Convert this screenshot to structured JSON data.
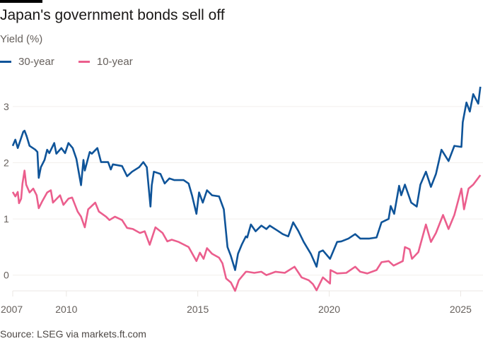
{
  "header": {
    "title": "Japan's government bonds sell off",
    "subtitle": "Yield (%)"
  },
  "footer": {
    "source": "Source: LSEG via markets.ft.com"
  },
  "chart_data": {
    "type": "line",
    "title": "Japan's government bonds sell off",
    "ylabel": "Yield (%)",
    "xlabel": "",
    "xlim": [
      2007.96,
      2025.85
    ],
    "ylim": [
      -0.28,
      3.5
    ],
    "grid": true,
    "legend_placement": "top-left",
    "x_ticks": [
      {
        "label": "2007",
        "value": 2007.96
      },
      {
        "label": "2010",
        "value": 2010
      },
      {
        "label": "2015",
        "value": 2015
      },
      {
        "label": "2020",
        "value": 2020
      },
      {
        "label": "2025",
        "value": 2025
      }
    ],
    "y_ticks": [
      0,
      1,
      2,
      3
    ],
    "series": [
      {
        "name": "30-year",
        "color": "#0f5499",
        "points": [
          [
            2007.96,
            2.3
          ],
          [
            2008.06,
            2.41
          ],
          [
            2008.15,
            2.26
          ],
          [
            2008.36,
            2.55
          ],
          [
            2008.41,
            2.57
          ],
          [
            2008.49,
            2.47
          ],
          [
            2008.6,
            2.3
          ],
          [
            2008.82,
            2.23
          ],
          [
            2008.9,
            2.19
          ],
          [
            2008.95,
            1.73
          ],
          [
            2009.03,
            1.92
          ],
          [
            2009.17,
            2.05
          ],
          [
            2009.27,
            2.23
          ],
          [
            2009.35,
            2.17
          ],
          [
            2009.54,
            2.35
          ],
          [
            2009.62,
            2.16
          ],
          [
            2009.81,
            2.26
          ],
          [
            2009.95,
            2.17
          ],
          [
            2010.08,
            2.35
          ],
          [
            2010.24,
            2.26
          ],
          [
            2010.38,
            2.07
          ],
          [
            2010.56,
            1.6
          ],
          [
            2010.65,
            2.05
          ],
          [
            2010.7,
            1.86
          ],
          [
            2010.89,
            2.19
          ],
          [
            2010.97,
            2.16
          ],
          [
            2011.18,
            2.26
          ],
          [
            2011.32,
            2.01
          ],
          [
            2011.59,
            2.01
          ],
          [
            2011.69,
            1.88
          ],
          [
            2011.77,
            1.97
          ],
          [
            2012.12,
            1.94
          ],
          [
            2012.31,
            1.76
          ],
          [
            2012.5,
            1.84
          ],
          [
            2012.77,
            1.92
          ],
          [
            2012.93,
            2.01
          ],
          [
            2013.06,
            1.92
          ],
          [
            2013.2,
            1.22
          ],
          [
            2013.25,
            1.6
          ],
          [
            2013.33,
            1.84
          ],
          [
            2013.58,
            1.8
          ],
          [
            2013.74,
            1.63
          ],
          [
            2013.92,
            1.72
          ],
          [
            2014.11,
            1.69
          ],
          [
            2014.46,
            1.69
          ],
          [
            2014.65,
            1.63
          ],
          [
            2014.78,
            1.42
          ],
          [
            2014.95,
            1.09
          ],
          [
            2015.05,
            1.47
          ],
          [
            2015.19,
            1.29
          ],
          [
            2015.35,
            1.51
          ],
          [
            2015.54,
            1.42
          ],
          [
            2015.81,
            1.4
          ],
          [
            2015.99,
            1.17
          ],
          [
            2016.13,
            0.5
          ],
          [
            2016.26,
            0.34
          ],
          [
            2016.42,
            0.09
          ],
          [
            2016.53,
            0.38
          ],
          [
            2016.67,
            0.54
          ],
          [
            2016.83,
            0.69
          ],
          [
            2016.88,
            0.67
          ],
          [
            2017.02,
            0.9
          ],
          [
            2017.2,
            0.78
          ],
          [
            2017.42,
            0.88
          ],
          [
            2017.61,
            0.82
          ],
          [
            2017.74,
            0.88
          ],
          [
            2018.04,
            0.79
          ],
          [
            2018.23,
            0.73
          ],
          [
            2018.44,
            0.69
          ],
          [
            2018.63,
            0.94
          ],
          [
            2018.82,
            0.79
          ],
          [
            2019.03,
            0.59
          ],
          [
            2019.3,
            0.38
          ],
          [
            2019.52,
            0.15
          ],
          [
            2019.62,
            0.41
          ],
          [
            2019.76,
            0.44
          ],
          [
            2020.03,
            0.29
          ],
          [
            2020.3,
            0.59
          ],
          [
            2020.46,
            0.6
          ],
          [
            2020.73,
            0.65
          ],
          [
            2020.99,
            0.73
          ],
          [
            2021.18,
            0.65
          ],
          [
            2021.53,
            0.65
          ],
          [
            2021.8,
            0.67
          ],
          [
            2021.99,
            0.94
          ],
          [
            2022.26,
            1.0
          ],
          [
            2022.34,
            1.23
          ],
          [
            2022.47,
            1.09
          ],
          [
            2022.66,
            1.59
          ],
          [
            2022.74,
            1.42
          ],
          [
            2022.88,
            1.61
          ],
          [
            2023.12,
            1.29
          ],
          [
            2023.33,
            1.22
          ],
          [
            2023.47,
            1.61
          ],
          [
            2023.68,
            1.84
          ],
          [
            2023.87,
            1.57
          ],
          [
            2024.06,
            1.8
          ],
          [
            2024.27,
            2.23
          ],
          [
            2024.54,
            2.03
          ],
          [
            2024.76,
            2.3
          ],
          [
            2025.03,
            2.28
          ],
          [
            2025.08,
            2.72
          ],
          [
            2025.22,
            3.07
          ],
          [
            2025.35,
            2.91
          ],
          [
            2025.48,
            3.22
          ],
          [
            2025.67,
            3.05
          ],
          [
            2025.75,
            3.35
          ]
        ]
      },
      {
        "name": "10-year",
        "color": "#eb5e8d",
        "points": [
          [
            2007.96,
            1.48
          ],
          [
            2008.06,
            1.4
          ],
          [
            2008.15,
            1.48
          ],
          [
            2008.2,
            1.28
          ],
          [
            2008.28,
            1.36
          ],
          [
            2008.33,
            1.63
          ],
          [
            2008.41,
            1.86
          ],
          [
            2008.47,
            1.61
          ],
          [
            2008.6,
            1.47
          ],
          [
            2008.74,
            1.54
          ],
          [
            2008.87,
            1.42
          ],
          [
            2008.95,
            1.19
          ],
          [
            2009.09,
            1.32
          ],
          [
            2009.27,
            1.47
          ],
          [
            2009.41,
            1.51
          ],
          [
            2009.49,
            1.29
          ],
          [
            2009.76,
            1.42
          ],
          [
            2009.89,
            1.25
          ],
          [
            2010.08,
            1.36
          ],
          [
            2010.22,
            1.38
          ],
          [
            2010.43,
            1.13
          ],
          [
            2010.56,
            1.04
          ],
          [
            2010.7,
            0.85
          ],
          [
            2010.83,
            1.17
          ],
          [
            2011.1,
            1.29
          ],
          [
            2011.24,
            1.13
          ],
          [
            2011.51,
            1.04
          ],
          [
            2011.64,
            0.98
          ],
          [
            2011.85,
            1.04
          ],
          [
            2012.12,
            0.98
          ],
          [
            2012.31,
            0.84
          ],
          [
            2012.53,
            0.82
          ],
          [
            2012.8,
            0.75
          ],
          [
            2012.98,
            0.78
          ],
          [
            2013.17,
            0.54
          ],
          [
            2013.39,
            0.85
          ],
          [
            2013.66,
            0.75
          ],
          [
            2013.84,
            0.6
          ],
          [
            2014.01,
            0.63
          ],
          [
            2014.27,
            0.59
          ],
          [
            2014.65,
            0.5
          ],
          [
            2014.95,
            0.25
          ],
          [
            2015.08,
            0.4
          ],
          [
            2015.22,
            0.29
          ],
          [
            2015.35,
            0.48
          ],
          [
            2015.54,
            0.38
          ],
          [
            2015.81,
            0.31
          ],
          [
            2015.94,
            0.21
          ],
          [
            2016.08,
            -0.06
          ],
          [
            2016.26,
            -0.13
          ],
          [
            2016.42,
            -0.28
          ],
          [
            2016.56,
            -0.09
          ],
          [
            2016.83,
            0.06
          ],
          [
            2016.88,
            0.06
          ],
          [
            2017.15,
            0.04
          ],
          [
            2017.42,
            0.06
          ],
          [
            2017.61,
            0.0
          ],
          [
            2017.96,
            0.06
          ],
          [
            2018.31,
            0.04
          ],
          [
            2018.68,
            0.15
          ],
          [
            2018.95,
            -0.04
          ],
          [
            2019.22,
            -0.09
          ],
          [
            2019.38,
            -0.16
          ],
          [
            2019.52,
            -0.27
          ],
          [
            2019.76,
            -0.04
          ],
          [
            2020.03,
            -0.15
          ],
          [
            2020.05,
            0.09
          ],
          [
            2020.3,
            0.03
          ],
          [
            2020.65,
            0.04
          ],
          [
            2020.99,
            0.15
          ],
          [
            2021.18,
            0.06
          ],
          [
            2021.45,
            0.03
          ],
          [
            2021.8,
            0.09
          ],
          [
            2021.99,
            0.23
          ],
          [
            2022.26,
            0.25
          ],
          [
            2022.45,
            0.17
          ],
          [
            2022.8,
            0.25
          ],
          [
            2022.88,
            0.5
          ],
          [
            2023.06,
            0.46
          ],
          [
            2023.15,
            0.29
          ],
          [
            2023.39,
            0.41
          ],
          [
            2023.68,
            0.9
          ],
          [
            2023.87,
            0.59
          ],
          [
            2024.06,
            0.75
          ],
          [
            2024.33,
            1.07
          ],
          [
            2024.54,
            0.82
          ],
          [
            2024.76,
            1.07
          ],
          [
            2025.03,
            1.54
          ],
          [
            2025.13,
            1.17
          ],
          [
            2025.3,
            1.54
          ],
          [
            2025.48,
            1.61
          ],
          [
            2025.75,
            1.78
          ]
        ]
      }
    ]
  }
}
